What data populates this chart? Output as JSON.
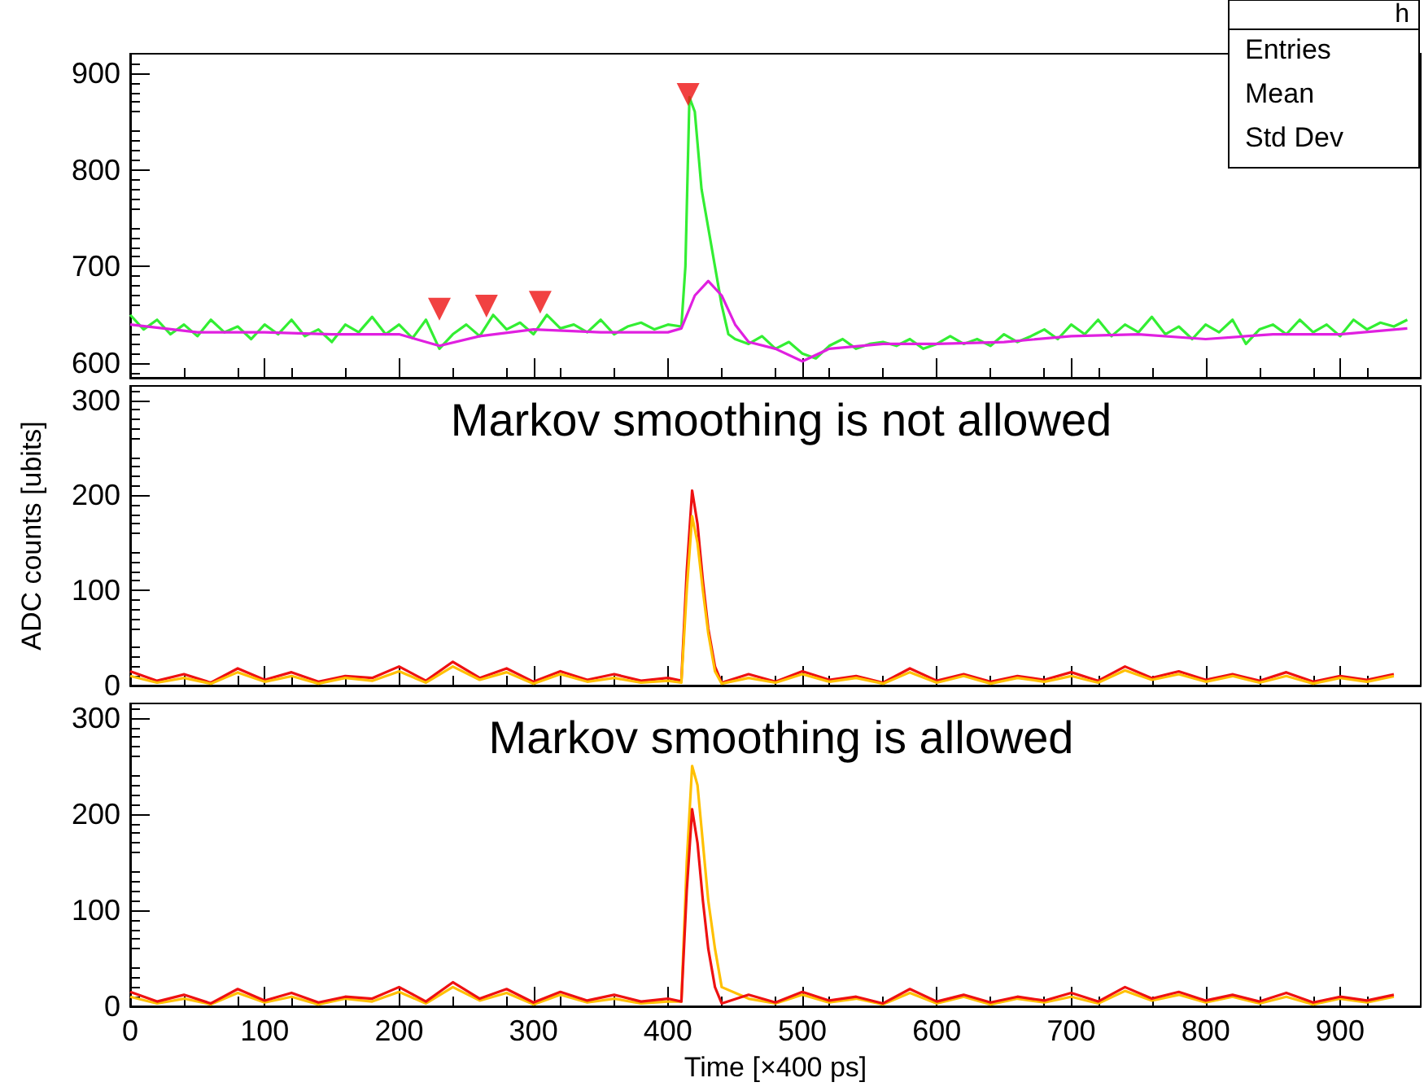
{
  "chart_data": [
    {
      "type": "line",
      "annotations": [
        "h",
        "Entries",
        "Mean",
        "Std Dev"
      ],
      "xlim": [
        0,
        960
      ],
      "xticks": [
        0,
        100,
        200,
        300,
        400,
        500,
        600,
        700,
        800,
        900
      ],
      "ylim": [
        585,
        920
      ],
      "yticks": [
        600,
        700,
        800,
        900
      ],
      "tick_labels": "y",
      "series": [
        {
          "color": "#33ee33",
          "x": [
            0,
            10,
            20,
            30,
            40,
            50,
            60,
            70,
            80,
            90,
            100,
            110,
            120,
            130,
            140,
            150,
            160,
            170,
            180,
            190,
            200,
            210,
            220,
            230,
            240,
            250,
            260,
            270,
            280,
            290,
            300,
            310,
            320,
            330,
            340,
            350,
            360,
            370,
            380,
            390,
            400,
            410,
            413,
            416,
            420,
            425,
            430,
            435,
            440,
            445,
            450,
            460,
            470,
            480,
            490,
            500,
            510,
            520,
            530,
            540,
            550,
            560,
            570,
            580,
            590,
            600,
            610,
            620,
            630,
            640,
            650,
            660,
            670,
            680,
            690,
            700,
            710,
            720,
            730,
            740,
            750,
            760,
            770,
            780,
            790,
            800,
            810,
            820,
            830,
            840,
            850,
            860,
            870,
            880,
            890,
            900,
            910,
            920,
            930,
            940,
            950
          ],
          "values": [
            650,
            635,
            645,
            630,
            640,
            628,
            645,
            632,
            638,
            625,
            640,
            630,
            645,
            628,
            635,
            622,
            640,
            632,
            648,
            630,
            640,
            626,
            645,
            615,
            630,
            640,
            628,
            650,
            635,
            642,
            630,
            650,
            636,
            640,
            632,
            645,
            630,
            638,
            642,
            635,
            640,
            638,
            700,
            875,
            860,
            780,
            740,
            700,
            660,
            630,
            625,
            620,
            628,
            615,
            622,
            610,
            605,
            618,
            625,
            615,
            620,
            622,
            618,
            625,
            615,
            620,
            628,
            620,
            625,
            618,
            630,
            622,
            628,
            635,
            625,
            640,
            630,
            645,
            628,
            640,
            632,
            648,
            630,
            638,
            625,
            640,
            632,
            645,
            620,
            635,
            640,
            630,
            645,
            632,
            640,
            628,
            645,
            635,
            642,
            638,
            645
          ]
        },
        {
          "color": "#e020e0",
          "x": [
            0,
            50,
            100,
            150,
            200,
            230,
            260,
            300,
            350,
            400,
            410,
            420,
            430,
            440,
            450,
            460,
            480,
            500,
            520,
            560,
            600,
            650,
            700,
            750,
            800,
            850,
            900,
            950
          ],
          "values": [
            640,
            632,
            632,
            630,
            630,
            618,
            628,
            635,
            632,
            632,
            636,
            670,
            685,
            670,
            640,
            622,
            615,
            602,
            615,
            620,
            620,
            622,
            628,
            630,
            625,
            630,
            630,
            636
          ]
        },
        {
          "type": "scatter",
          "marker": "triangle",
          "color": "#ee1111",
          "x": [
            230,
            265,
            305,
            415
          ],
          "values": [
            656,
            659,
            663,
            878
          ]
        }
      ]
    },
    {
      "type": "line",
      "title": "Markov smoothing is not allowed",
      "ylabel": "ADC counts [ubits]",
      "xlim": [
        0,
        960
      ],
      "xticks": [
        0,
        100,
        200,
        300,
        400,
        500,
        600,
        700,
        800,
        900
      ],
      "ylim": [
        0,
        315
      ],
      "yticks": [
        0,
        100,
        200,
        300
      ],
      "tick_labels": "y",
      "series": [
        {
          "color": "#ee1111",
          "x": [
            0,
            20,
            40,
            60,
            80,
            100,
            120,
            140,
            160,
            180,
            200,
            220,
            240,
            260,
            280,
            300,
            320,
            340,
            360,
            380,
            400,
            410,
            414,
            418,
            422,
            426,
            430,
            435,
            440,
            460,
            480,
            500,
            520,
            540,
            560,
            580,
            600,
            620,
            640,
            660,
            680,
            700,
            720,
            740,
            760,
            780,
            800,
            820,
            840,
            860,
            880,
            900,
            920,
            940
          ],
          "values": [
            15,
            5,
            12,
            3,
            18,
            6,
            14,
            4,
            10,
            8,
            20,
            5,
            25,
            8,
            18,
            4,
            15,
            6,
            12,
            5,
            8,
            5,
            120,
            205,
            170,
            110,
            60,
            20,
            3,
            12,
            4,
            15,
            6,
            10,
            3,
            18,
            5,
            12,
            4,
            10,
            6,
            14,
            5,
            20,
            8,
            15,
            6,
            12,
            5,
            14,
            4,
            10,
            6,
            12
          ]
        },
        {
          "color": "#ffc000",
          "x": [
            0,
            20,
            40,
            60,
            80,
            100,
            120,
            140,
            160,
            180,
            200,
            220,
            240,
            260,
            280,
            300,
            320,
            340,
            360,
            380,
            400,
            410,
            414,
            418,
            422,
            426,
            430,
            435,
            440,
            460,
            480,
            500,
            520,
            540,
            560,
            580,
            600,
            620,
            640,
            660,
            680,
            700,
            720,
            740,
            760,
            780,
            800,
            820,
            840,
            860,
            880,
            900,
            920,
            940
          ],
          "values": [
            10,
            3,
            8,
            2,
            14,
            4,
            10,
            2,
            8,
            5,
            15,
            3,
            20,
            6,
            14,
            2,
            12,
            4,
            8,
            3,
            5,
            3,
            100,
            178,
            150,
            100,
            55,
            15,
            2,
            8,
            3,
            12,
            4,
            8,
            2,
            14,
            3,
            10,
            2,
            8,
            4,
            10,
            3,
            16,
            6,
            12,
            4,
            10,
            3,
            10,
            2,
            8,
            4,
            10
          ]
        }
      ]
    },
    {
      "type": "line",
      "title": "Markov smoothing is allowed",
      "xlabel": "Time [×400 ps]",
      "xlim": [
        0,
        960
      ],
      "xticks": [
        0,
        100,
        200,
        300,
        400,
        500,
        600,
        700,
        800,
        900
      ],
      "ylim": [
        0,
        315
      ],
      "yticks": [
        0,
        100,
        200,
        300
      ],
      "series": [
        {
          "color": "#ffc000",
          "x": [
            0,
            20,
            40,
            60,
            80,
            100,
            120,
            140,
            160,
            180,
            200,
            220,
            240,
            260,
            280,
            300,
            320,
            340,
            360,
            380,
            400,
            410,
            414,
            418,
            422,
            426,
            430,
            435,
            440,
            460,
            480,
            500,
            520,
            540,
            560,
            580,
            600,
            620,
            640,
            660,
            680,
            700,
            720,
            740,
            760,
            780,
            800,
            820,
            840,
            860,
            880,
            900,
            920,
            940
          ],
          "values": [
            10,
            3,
            8,
            2,
            14,
            4,
            10,
            2,
            8,
            5,
            15,
            3,
            20,
            6,
            14,
            2,
            12,
            4,
            8,
            3,
            5,
            5,
            150,
            250,
            230,
            170,
            110,
            60,
            20,
            8,
            3,
            12,
            4,
            8,
            2,
            14,
            3,
            10,
            2,
            8,
            4,
            10,
            3,
            16,
            6,
            12,
            4,
            10,
            3,
            10,
            2,
            8,
            4,
            10
          ]
        },
        {
          "color": "#ee1111",
          "x": [
            0,
            20,
            40,
            60,
            80,
            100,
            120,
            140,
            160,
            180,
            200,
            220,
            240,
            260,
            280,
            300,
            320,
            340,
            360,
            380,
            400,
            410,
            414,
            418,
            422,
            426,
            430,
            435,
            440,
            460,
            480,
            500,
            520,
            540,
            560,
            580,
            600,
            620,
            640,
            660,
            680,
            700,
            720,
            740,
            760,
            780,
            800,
            820,
            840,
            860,
            880,
            900,
            920,
            940
          ],
          "values": [
            15,
            5,
            12,
            3,
            18,
            6,
            14,
            4,
            10,
            8,
            20,
            5,
            25,
            8,
            18,
            4,
            15,
            6,
            12,
            5,
            8,
            5,
            120,
            205,
            170,
            110,
            60,
            20,
            3,
            12,
            4,
            15,
            6,
            10,
            3,
            18,
            5,
            12,
            4,
            10,
            6,
            14,
            5,
            20,
            8,
            15,
            6,
            12,
            5,
            14,
            4,
            10,
            6,
            12
          ]
        }
      ]
    }
  ]
}
